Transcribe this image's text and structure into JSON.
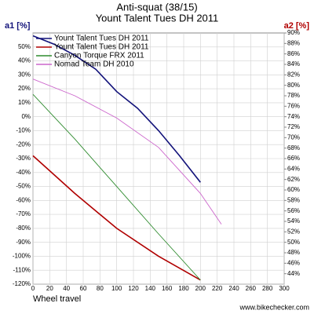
{
  "chart_data": {
    "type": "line",
    "title": "Anti-squat (38/15)",
    "subtitle": "Yount Talent Tues DH 2011",
    "y_label": "a1 [%]",
    "y2_label": "a2 [%]",
    "x_label": "Wheel travel",
    "source": "www.bikechecker.com",
    "xlim": [
      0,
      300
    ],
    "xticks": [
      0,
      20,
      40,
      60,
      80,
      100,
      120,
      140,
      160,
      180,
      200,
      220,
      240,
      260,
      280,
      300
    ],
    "ylim": [
      -120,
      60
    ],
    "yticks": [
      {
        "value": -120,
        "label": "-120%"
      },
      {
        "value": -110,
        "label": "-110%"
      },
      {
        "value": -100,
        "label": "-100%"
      },
      {
        "value": -90,
        "label": "-90%"
      },
      {
        "value": -80,
        "label": "-80%"
      },
      {
        "value": -70,
        "label": "-70%"
      },
      {
        "value": -60,
        "label": "-60%"
      },
      {
        "value": -50,
        "label": "-50%"
      },
      {
        "value": -40,
        "label": "-40%"
      },
      {
        "value": -30,
        "label": "-30%"
      },
      {
        "value": -20,
        "label": "-20%"
      },
      {
        "value": -10,
        "label": "-10%"
      },
      {
        "value": 0,
        "label": "0%"
      },
      {
        "value": 10,
        "label": "10%"
      },
      {
        "value": 20,
        "label": "20%"
      },
      {
        "value": 30,
        "label": "30%"
      },
      {
        "value": 40,
        "label": "40%"
      },
      {
        "value": 50,
        "label": "50%"
      }
    ],
    "y2lim": [
      42,
      90
    ],
    "y2ticks": [
      {
        "value": 44,
        "label": "44%"
      },
      {
        "value": 46,
        "label": "46%"
      },
      {
        "value": 48,
        "label": "48%"
      },
      {
        "value": 50,
        "label": "50%"
      },
      {
        "value": 52,
        "label": "52%"
      },
      {
        "value": 54,
        "label": "54%"
      },
      {
        "value": 56,
        "label": "56%"
      },
      {
        "value": 58,
        "label": "58%"
      },
      {
        "value": 60,
        "label": "60%"
      },
      {
        "value": 62,
        "label": "62%"
      },
      {
        "value": 64,
        "label": "64%"
      },
      {
        "value": 66,
        "label": "66%"
      },
      {
        "value": 68,
        "label": "68%"
      },
      {
        "value": 70,
        "label": "70%"
      },
      {
        "value": 72,
        "label": "72%"
      },
      {
        "value": 74,
        "label": "74%"
      },
      {
        "value": 76,
        "label": "76%"
      },
      {
        "value": 78,
        "label": "78%"
      },
      {
        "value": 80,
        "label": "80%"
      },
      {
        "value": 82,
        "label": "82%"
      },
      {
        "value": 84,
        "label": "84%"
      },
      {
        "value": 86,
        "label": "86%"
      },
      {
        "value": 88,
        "label": "88%"
      },
      {
        "value": 90,
        "label": "90%"
      }
    ],
    "grid": true,
    "legend": "top-left",
    "series": [
      {
        "name": "Yount Talent Tues DH 2011",
        "color": "#12127a",
        "x": [
          0,
          25,
          50,
          75,
          100,
          125,
          150,
          175,
          200
        ],
        "values": [
          58,
          52,
          44,
          34,
          18,
          6,
          -10,
          -28,
          -47
        ]
      },
      {
        "name": "Yount Talent Tues DH 2011",
        "color": "#b00000",
        "x": [
          0,
          50,
          100,
          150,
          200
        ],
        "values": [
          -28,
          -55,
          -80,
          -100,
          -117
        ]
      },
      {
        "name": "Canyon Torque FRX 2011",
        "color": "#2e8b2e",
        "x": [
          0,
          50,
          100,
          150,
          200
        ],
        "values": [
          16,
          -16,
          -50,
          -84,
          -117
        ]
      },
      {
        "name": "Nomad Team DH 2010",
        "color": "#cc66cc",
        "x": [
          0,
          50,
          100,
          150,
          200,
          225
        ],
        "values": [
          27,
          15,
          -1,
          -22,
          -55,
          -77
        ]
      }
    ]
  }
}
